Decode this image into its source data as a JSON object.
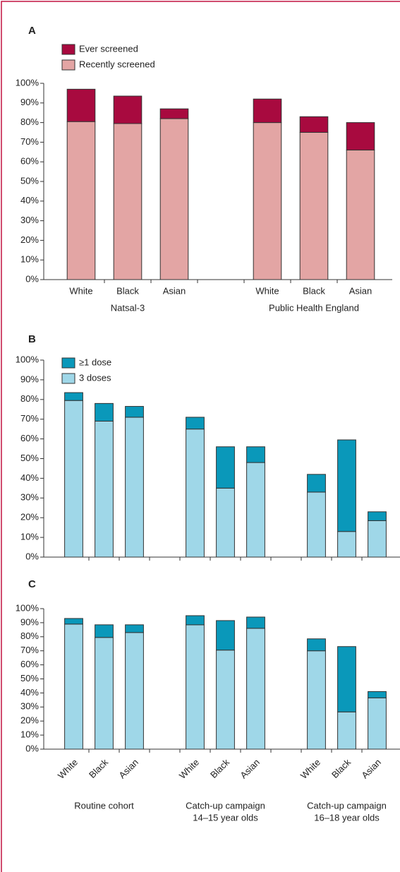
{
  "chart_data": [
    {
      "type": "bar",
      "stacked": true,
      "title": "A",
      "categories": [
        "White",
        "Black",
        "Asian",
        null,
        "White",
        "Black",
        "Asian"
      ],
      "groups": [
        [
          "Natsal-3"
        ],
        [
          "Public Health England"
        ]
      ],
      "series": [
        {
          "name": "Recently screened",
          "color": "#e3a5a4",
          "values": [
            80.5,
            79.5,
            82,
            null,
            80,
            75,
            66
          ]
        },
        {
          "name": "Ever screened",
          "color": "#a80a3f",
          "values": [
            16.5,
            14,
            5,
            null,
            12,
            8,
            14
          ]
        }
      ],
      "ylim": [
        0,
        100
      ],
      "yticks": [
        {
          "value": 0,
          "label": "0%"
        },
        {
          "value": 10,
          "label": "10%"
        },
        {
          "value": 20,
          "label": "20%"
        },
        {
          "value": 30,
          "label": "30%"
        },
        {
          "value": 40,
          "label": "40%"
        },
        {
          "value": 50,
          "label": "50%"
        },
        {
          "value": 60,
          "label": "60%"
        },
        {
          "value": 70,
          "label": "70%"
        },
        {
          "value": 80,
          "label": "80%"
        },
        {
          "value": 90,
          "label": "90%"
        },
        {
          "value": 100,
          "label": "100%"
        }
      ],
      "legend": "top-left"
    },
    {
      "type": "bar",
      "stacked": true,
      "title": "B",
      "categories": [
        null,
        null,
        null,
        null,
        null,
        null,
        null,
        null,
        null,
        null,
        null
      ],
      "series": [
        {
          "name": "3 doses",
          "color": "#9fd7e8",
          "values": [
            79.5,
            69,
            71,
            null,
            65,
            35,
            48,
            null,
            33,
            13,
            18.5
          ]
        },
        {
          "name": "≥1 dose",
          "color": "#0a98ba",
          "values": [
            4,
            9,
            5.5,
            null,
            6,
            21,
            8,
            null,
            9,
            46.5,
            4.5
          ]
        }
      ],
      "ylim": [
        0,
        100
      ],
      "yticks": [
        {
          "value": 0,
          "label": "0%"
        },
        {
          "value": 10,
          "label": "10%"
        },
        {
          "value": 20,
          "label": "20%"
        },
        {
          "value": 30,
          "label": "30%"
        },
        {
          "value": 40,
          "label": "40%"
        },
        {
          "value": 50,
          "label": "50%"
        },
        {
          "value": 60,
          "label": "60%"
        },
        {
          "value": 70,
          "label": "70%"
        },
        {
          "value": 80,
          "label": "80%"
        },
        {
          "value": 90,
          "label": "90%"
        },
        {
          "value": 100,
          "label": "100%"
        }
      ],
      "legend": "top-left"
    },
    {
      "type": "bar",
      "stacked": true,
      "title": "C",
      "categories": [
        "White",
        "Black",
        "Asian",
        null,
        "White",
        "Black",
        "Asian",
        null,
        "White",
        "Black",
        "Asian"
      ],
      "groups": [
        [
          "Routine cohort"
        ],
        [
          "Catch-up campaign",
          "14–15 year olds"
        ],
        [
          "Catch-up campaign",
          "16–18 year olds"
        ]
      ],
      "xtick_rotation": 45,
      "series": [
        {
          "color": "#9fd7e8",
          "values": [
            89,
            79.5,
            83,
            null,
            88.5,
            70.5,
            86,
            null,
            70,
            26.5,
            36.5
          ]
        },
        {
          "color": "#0a98ba",
          "values": [
            4,
            9,
            5.5,
            null,
            6.5,
            21,
            8,
            null,
            8.5,
            46.5,
            4.5
          ]
        }
      ],
      "ylim": [
        0,
        100
      ],
      "yticks": [
        {
          "value": 0,
          "label": "0%"
        },
        {
          "value": 10,
          "label": "10%"
        },
        {
          "value": 20,
          "label": "20%"
        },
        {
          "value": 30,
          "label": "30%"
        },
        {
          "value": 40,
          "label": "40%"
        },
        {
          "value": 50,
          "label": "50%"
        },
        {
          "value": 60,
          "label": "60%"
        },
        {
          "value": 70,
          "label": "70%"
        },
        {
          "value": 80,
          "label": "80%"
        },
        {
          "value": 90,
          "label": "90%"
        },
        {
          "value": 100,
          "label": "100%"
        }
      ]
    }
  ]
}
